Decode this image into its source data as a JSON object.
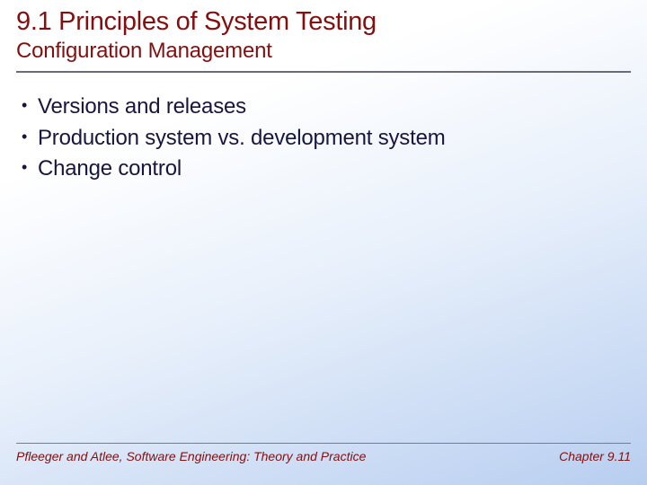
{
  "colors": {
    "heading": "#830f0f",
    "body_text": "#16163f",
    "rule": "#6a6a7a",
    "bg_gradient_start": "#ffffff",
    "bg_gradient_mid": "#e8f0fb",
    "bg_gradient_end": "#b8cef0"
  },
  "typography": {
    "title_fontsize": 29,
    "subtitle_fontsize": 24,
    "bullet_fontsize": 24,
    "footer_fontsize": 14,
    "footer_style": "italic"
  },
  "header": {
    "title": "9.1 Principles of System Testing",
    "subtitle": "Configuration Management"
  },
  "bullets": [
    "Versions and releases",
    "Production system vs. development system",
    "Change control"
  ],
  "footer": {
    "left": "Pfleeger and Atlee, Software Engineering: Theory and Practice",
    "right": "Chapter 9.11"
  }
}
